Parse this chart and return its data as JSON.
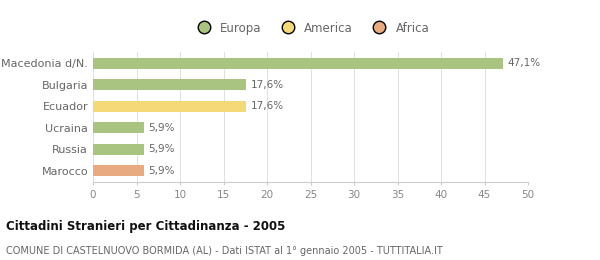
{
  "categories": [
    "Macedonia d/N.",
    "Bulgaria",
    "Ecuador",
    "Ucraina",
    "Russia",
    "Marocco"
  ],
  "values": [
    47.1,
    17.6,
    17.6,
    5.9,
    5.9,
    5.9
  ],
  "labels": [
    "47,1%",
    "17,6%",
    "17,6%",
    "5,9%",
    "5,9%",
    "5,9%"
  ],
  "colors": [
    "#a8c480",
    "#a8c480",
    "#f5d878",
    "#a8c480",
    "#a8c480",
    "#e8aa80"
  ],
  "legend": [
    {
      "label": "Europa",
      "color": "#a8c480"
    },
    {
      "label": "America",
      "color": "#f5d878"
    },
    {
      "label": "Africa",
      "color": "#e8aa80"
    }
  ],
  "xlim": [
    0,
    50
  ],
  "xticks": [
    0,
    5,
    10,
    15,
    20,
    25,
    30,
    35,
    40,
    45,
    50
  ],
  "title_bold": "Cittadini Stranieri per Cittadinanza - 2005",
  "subtitle": "COMUNE DI CASTELNUOVO BORMIDA (AL) - Dati ISTAT al 1° gennaio 2005 - TUTTITALIA.IT",
  "background_color": "#ffffff",
  "bar_height": 0.52,
  "label_fontsize": 7.5,
  "tick_fontsize": 7.5,
  "category_fontsize": 8.0,
  "legend_fontsize": 8.5,
  "title_fontsize": 8.5,
  "subtitle_fontsize": 7.0
}
